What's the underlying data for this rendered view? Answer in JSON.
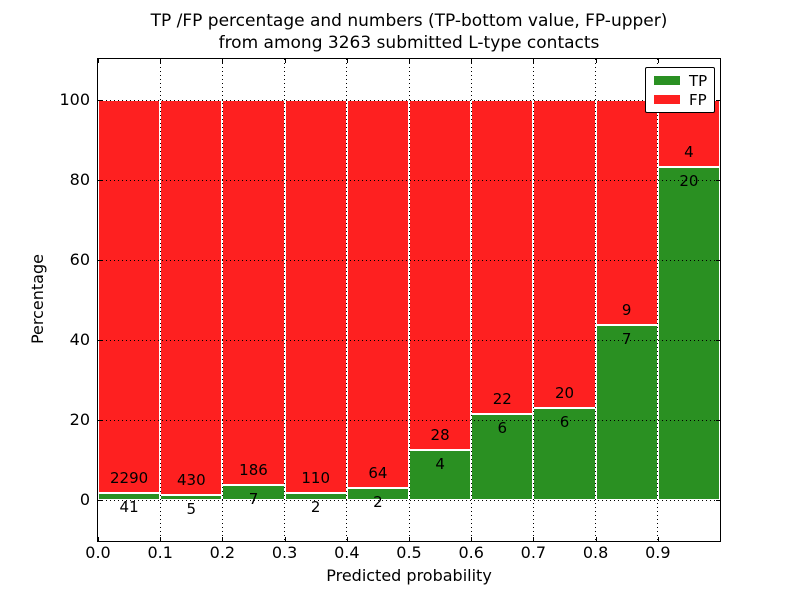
{
  "chart_data": {
    "type": "bar",
    "stacked": true,
    "normalized": "percent",
    "title_lines": [
      "TP /FP percentage and numbers (TP-bottom value, FP-upper)",
      "from among 3263 submitted L-type contacts"
    ],
    "total_contacts": 3263,
    "xlabel": "Predicted probability",
    "ylabel": "Percentage",
    "xlim": [
      0.0,
      1.0
    ],
    "ylim": [
      -10.25,
      110.25
    ],
    "grid": "dotted",
    "x_tick_labels": [
      "0.0",
      "0.1",
      "0.2",
      "0.3",
      "0.4",
      "0.5",
      "0.6",
      "0.7",
      "0.8",
      "0.9"
    ],
    "y_tick_values": [
      0,
      20,
      40,
      60,
      80,
      100
    ],
    "y_tick_labels": [
      "0",
      "20",
      "40",
      "60",
      "80",
      "100"
    ],
    "bin_width": 0.1,
    "bins": [
      {
        "x0": 0.0,
        "x1": 0.1,
        "tp": 41,
        "fp": 2290,
        "tp_pct": 1.76,
        "fp_pct": 98.24
      },
      {
        "x0": 0.1,
        "x1": 0.2,
        "tp": 5,
        "fp": 430,
        "tp_pct": 1.15,
        "fp_pct": 98.85
      },
      {
        "x0": 0.2,
        "x1": 0.3,
        "tp": 7,
        "fp": 186,
        "tp_pct": 3.63,
        "fp_pct": 96.37
      },
      {
        "x0": 0.3,
        "x1": 0.4,
        "tp": 2,
        "fp": 110,
        "tp_pct": 1.79,
        "fp_pct": 98.21
      },
      {
        "x0": 0.4,
        "x1": 0.5,
        "tp": 2,
        "fp": 64,
        "tp_pct": 3.03,
        "fp_pct": 96.97
      },
      {
        "x0": 0.5,
        "x1": 0.6,
        "tp": 4,
        "fp": 28,
        "tp_pct": 12.5,
        "fp_pct": 87.5
      },
      {
        "x0": 0.6,
        "x1": 0.7,
        "tp": 6,
        "fp": 22,
        "tp_pct": 21.43,
        "fp_pct": 78.57
      },
      {
        "x0": 0.7,
        "x1": 0.8,
        "tp": 6,
        "fp": 20,
        "tp_pct": 23.08,
        "fp_pct": 76.92
      },
      {
        "x0": 0.8,
        "x1": 0.9,
        "tp": 7,
        "fp": 9,
        "tp_pct": 43.75,
        "fp_pct": 56.25
      },
      {
        "x0": 0.9,
        "x1": 1.0,
        "tp": 20,
        "fp": 4,
        "tp_pct": 83.33,
        "fp_pct": 16.67
      }
    ],
    "legend": {
      "position": "upper right",
      "entries": [
        {
          "label": "TP",
          "color": "#2a9022"
        },
        {
          "label": "FP",
          "color": "#fe2020"
        }
      ]
    },
    "colors": {
      "tp": "#2a9022",
      "fp": "#fe2020",
      "bar_edge": "#ffffff",
      "grid": "#000000",
      "text": "#000000",
      "background": "#ffffff"
    }
  }
}
